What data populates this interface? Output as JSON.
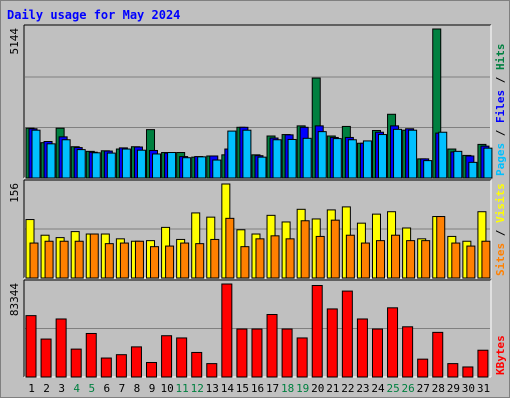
{
  "title": "Daily usage for May 2024",
  "chart_data": {
    "type": "bar",
    "title": "Daily usage for May 2024",
    "categories": [
      "1",
      "2",
      "3",
      "4",
      "5",
      "6",
      "7",
      "8",
      "9",
      "10",
      "11",
      "12",
      "13",
      "14",
      "15",
      "16",
      "17",
      "18",
      "19",
      "20",
      "21",
      "22",
      "23",
      "24",
      "25",
      "26",
      "27",
      "28",
      "29",
      "30",
      "31"
    ],
    "weekend_days": [
      "4",
      "5",
      "11",
      "12",
      "18",
      "19",
      "25",
      "26"
    ],
    "panels": [
      {
        "name": "hits_files_pages",
        "ymax_label": "5144",
        "ymax": 5144,
        "legend": [
          {
            "text": "Pages",
            "color": "#00c0ff"
          },
          {
            "text": " / ",
            "color": "#000000"
          },
          {
            "text": "Files",
            "color": "#0000ff"
          },
          {
            "text": " / ",
            "color": "#000000"
          },
          {
            "text": "Hits",
            "color": "#008040"
          }
        ],
        "series": [
          {
            "name": "Hits",
            "color": "#008040",
            "values": [
              1720,
              1220,
              1720,
              1080,
              920,
              940,
              1000,
              1080,
              1670,
              880,
              880,
              720,
              760,
              800,
              1750,
              800,
              1450,
              1500,
              1800,
              3450,
              1450,
              1780,
              1200,
              1640,
              2200,
              1650,
              660,
              5144,
              1000,
              780,
              1160
            ]
          },
          {
            "name": "Files",
            "color": "#0000ff",
            "values": [
              1700,
              1260,
              1420,
              1050,
              890,
              930,
              1040,
              1070,
              950,
              860,
              740,
              740,
              760,
              1000,
              1750,
              770,
              1380,
              1490,
              1750,
              1800,
              1400,
              1400,
              1200,
              1580,
              1800,
              1700,
              660,
              1550,
              900,
              760,
              1100
            ]
          },
          {
            "name": "Pages",
            "color": "#00c0ff",
            "values": [
              1650,
              1180,
              1320,
              980,
              870,
              860,
              1000,
              960,
              830,
              880,
              700,
              730,
              620,
              1620,
              1650,
              720,
              1320,
              1330,
              1370,
              1600,
              1360,
              1320,
              1280,
              1500,
              1680,
              1650,
              600,
              1580,
              920,
              540,
              1030
            ]
          }
        ]
      },
      {
        "name": "visits_sites",
        "ymax_label": "156",
        "ymax": 156,
        "legend": [
          {
            "text": "Sites",
            "color": "#ff8000"
          },
          {
            "text": " / ",
            "color": "#000000"
          },
          {
            "text": "Visits",
            "color": "#ffff00"
          }
        ],
        "series": [
          {
            "name": "Visits",
            "color": "#ffff00",
            "values": [
              97,
              71,
              67,
              77,
              73,
              73,
              65,
              61,
              62,
              84,
              64,
              108,
              101,
              156,
              80,
              73,
              104,
              93,
              114,
              98,
              113,
              118,
              91,
              106,
              110,
              83,
              65,
              102,
              69,
              61,
              110
            ]
          },
          {
            "name": "Sites",
            "color": "#ff8000",
            "values": [
              58,
              61,
              61,
              61,
              73,
              57,
              58,
              61,
              52,
              53,
              58,
              57,
              64,
              99,
              52,
              65,
              70,
              65,
              95,
              69,
              96,
              71,
              58,
              62,
              71,
              62,
              62,
              102,
              58,
              53,
              61
            ]
          }
        ]
      },
      {
        "name": "kbytes",
        "ymax_label": "83344",
        "ymax": 83344,
        "legend": [
          {
            "text": "KBytes",
            "color": "#ff0000"
          }
        ],
        "series": [
          {
            "name": "KBytes",
            "color": "#ff0000",
            "values": [
              55000,
              34000,
              52000,
              25000,
              39000,
              17000,
              20000,
              27000,
              13000,
              37000,
              35000,
              22000,
              12000,
              83344,
              43000,
              43000,
              56000,
              43000,
              35000,
              82000,
              61000,
              77000,
              52000,
              43000,
              62000,
              45000,
              16000,
              40000,
              12000,
              9000,
              24000
            ]
          }
        ]
      }
    ]
  }
}
